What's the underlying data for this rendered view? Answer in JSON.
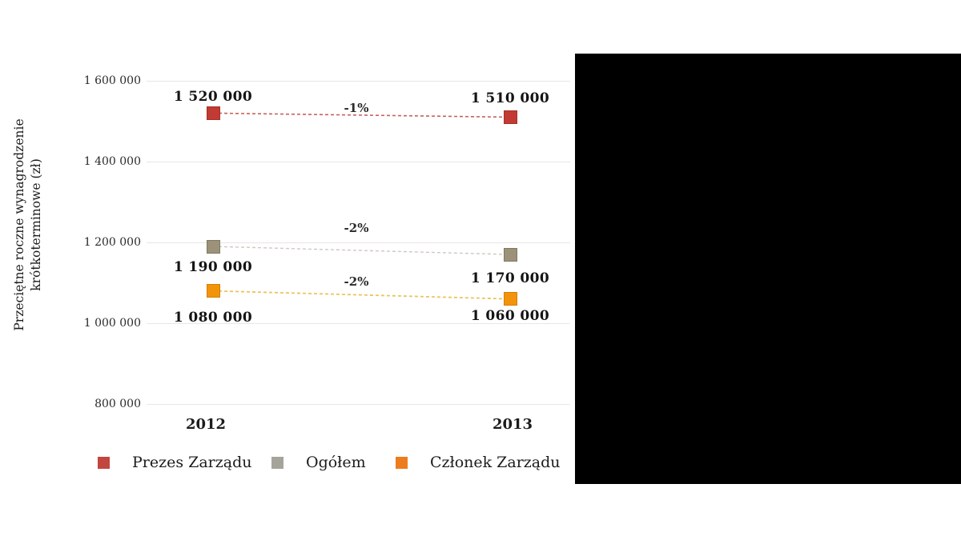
{
  "chart_data": {
    "type": "line",
    "title": "",
    "categories": [
      "2012",
      "2013"
    ],
    "ylabel": "Przeciętne roczne wynagrodzenie krótkoterminowe (zł)",
    "ylabel_lines": [
      "Przeciętne roczne wynagrodzenie",
      "krótkoterminowe (zł)"
    ],
    "ylim": [
      800000,
      1600000
    ],
    "grid": true,
    "legend_position": "bottom",
    "yticks": [
      {
        "value": 1600000,
        "label": "1 600 000"
      },
      {
        "value": 1400000,
        "label": "1 400 000"
      },
      {
        "value": 1200000,
        "label": "1 200 000"
      },
      {
        "value": 1000000,
        "label": "1 000 000"
      },
      {
        "value": 800000,
        "label": "800 000"
      }
    ],
    "series": [
      {
        "name": "Prezes Zarządu",
        "values": [
          1520000,
          1510000
        ],
        "value_labels": [
          "1 520 000",
          "1 510 000"
        ],
        "change_label": "-1%",
        "label_position": "above",
        "marker_color": "#c13a34",
        "marker_border": "#a42f2a",
        "line_color": "#c4625b",
        "legend_color": "#c2453f"
      },
      {
        "name": "Ogółem",
        "values": [
          1190000,
          1170000
        ],
        "value_labels": [
          "1 190 000",
          "1 170 000"
        ],
        "change_label": "-2%",
        "label_position": "below",
        "marker_color": "#9b9279",
        "marker_border": "#7f7860",
        "line_color": "#cdc9bd",
        "legend_color": "#a6a39b"
      },
      {
        "name": "Członek Zarządu",
        "values": [
          1080000,
          1060000
        ],
        "value_labels": [
          "1 080 000",
          "1 060 000"
        ],
        "change_label": "-2%",
        "label_position": "below",
        "marker_color": "#f2940a",
        "marker_border": "#d57d05",
        "line_color": "#eac55e",
        "legend_color": "#ed7d1c"
      }
    ]
  }
}
